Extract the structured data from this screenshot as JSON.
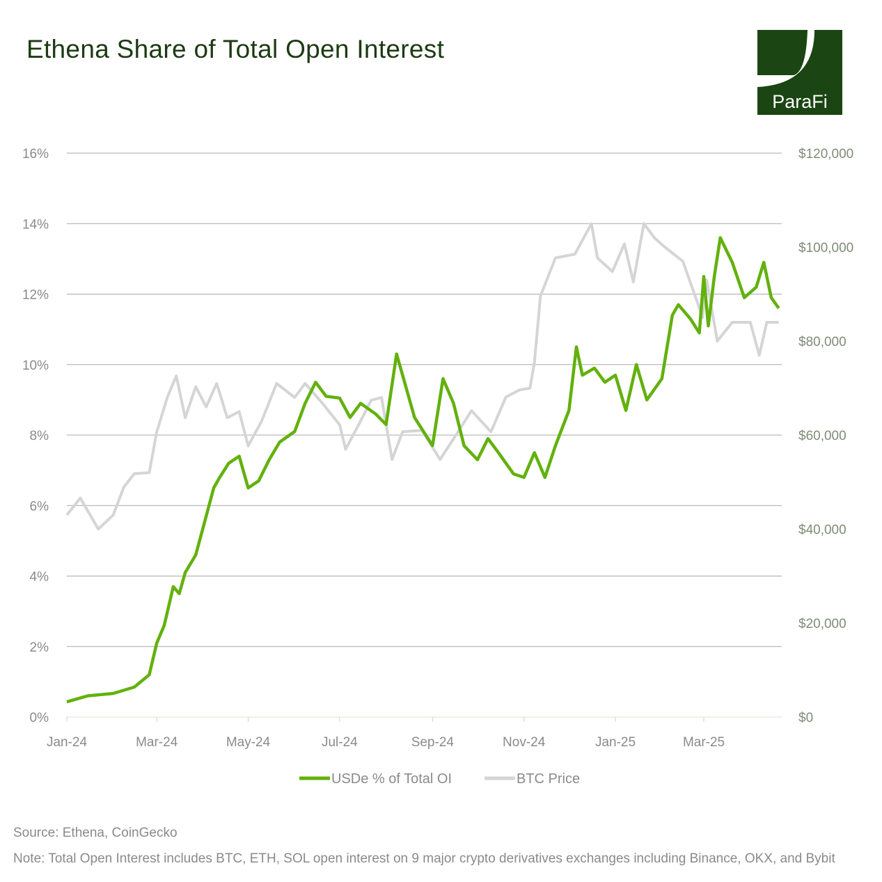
{
  "title": "Ethena Share of Total Open Interest",
  "logo": {
    "text": "ParaFi",
    "color": "#1b4513"
  },
  "source": "Source: Ethena, CoinGecko",
  "note": "Note: Total Open Interest includes BTC, ETH, SOL open interest on 9 major crypto derivatives exchanges including Binance, OKX, and Bybit",
  "chart_data": {
    "type": "line",
    "title": "Ethena Share of Total Open Interest",
    "grid": true,
    "legend_placement": "bottom",
    "x_ticks": [
      {
        "date": "2024-01-01",
        "label": "Jan-24"
      },
      {
        "date": "2024-03-01",
        "label": "Mar-24"
      },
      {
        "date": "2024-05-01",
        "label": "May-24"
      },
      {
        "date": "2024-07-01",
        "label": "Jul-24"
      },
      {
        "date": "2024-09-01",
        "label": "Sep-24"
      },
      {
        "date": "2024-11-01",
        "label": "Nov-24"
      },
      {
        "date": "2025-01-01",
        "label": "Jan-25"
      },
      {
        "date": "2025-03-01",
        "label": "Mar-25"
      }
    ],
    "xlim": [
      "2024-01-01",
      "2025-04-22"
    ],
    "y_left": {
      "ylim": [
        0,
        16
      ],
      "ticks": [
        "0%",
        "2%",
        "4%",
        "6%",
        "8%",
        "10%",
        "12%",
        "14%",
        "16%"
      ],
      "tick_values": [
        0,
        2,
        4,
        6,
        8,
        10,
        12,
        14,
        16
      ]
    },
    "y_right": {
      "ylim": [
        0,
        120000
      ],
      "ticks": [
        "$0",
        "$20,000",
        "$40,000",
        "$60,000",
        "$80,000",
        "$100,000",
        "$120,000"
      ],
      "tick_values": [
        0,
        20000,
        40000,
        60000,
        80000,
        100000,
        120000
      ]
    },
    "series": [
      {
        "name": "USDe % of Total OI",
        "axis": "left",
        "color": "#62b10c",
        "points": [
          [
            "2024-01-01",
            0.43
          ],
          [
            "2024-01-15",
            0.6
          ],
          [
            "2024-02-01",
            0.67
          ],
          [
            "2024-02-15",
            0.85
          ],
          [
            "2024-02-25",
            1.2
          ],
          [
            "2024-03-01",
            2.1
          ],
          [
            "2024-03-06",
            2.6
          ],
          [
            "2024-03-12",
            3.7
          ],
          [
            "2024-03-16",
            3.5
          ],
          [
            "2024-03-20",
            4.1
          ],
          [
            "2024-03-27",
            4.6
          ],
          [
            "2024-04-03",
            5.7
          ],
          [
            "2024-04-08",
            6.5
          ],
          [
            "2024-04-12",
            6.8
          ],
          [
            "2024-04-18",
            7.2
          ],
          [
            "2024-04-25",
            7.4
          ],
          [
            "2024-05-01",
            6.5
          ],
          [
            "2024-05-08",
            6.7
          ],
          [
            "2024-05-15",
            7.3
          ],
          [
            "2024-05-22",
            7.8
          ],
          [
            "2024-06-01",
            8.1
          ],
          [
            "2024-06-08",
            8.9
          ],
          [
            "2024-06-15",
            9.5
          ],
          [
            "2024-06-22",
            9.1
          ],
          [
            "2024-07-01",
            9.05
          ],
          [
            "2024-07-08",
            8.5
          ],
          [
            "2024-07-15",
            8.9
          ],
          [
            "2024-07-25",
            8.6
          ],
          [
            "2024-08-01",
            8.3
          ],
          [
            "2024-08-08",
            10.3
          ],
          [
            "2024-08-12",
            9.7
          ],
          [
            "2024-08-20",
            8.5
          ],
          [
            "2024-09-01",
            7.7
          ],
          [
            "2024-09-08",
            9.6
          ],
          [
            "2024-09-15",
            8.9
          ],
          [
            "2024-09-22",
            7.7
          ],
          [
            "2024-10-01",
            7.3
          ],
          [
            "2024-10-08",
            7.9
          ],
          [
            "2024-10-15",
            7.5
          ],
          [
            "2024-10-25",
            6.9
          ],
          [
            "2024-11-01",
            6.8
          ],
          [
            "2024-11-08",
            7.5
          ],
          [
            "2024-11-15",
            6.8
          ],
          [
            "2024-11-22",
            7.7
          ],
          [
            "2024-12-01",
            8.7
          ],
          [
            "2024-12-06",
            10.5
          ],
          [
            "2024-12-10",
            9.7
          ],
          [
            "2024-12-18",
            9.9
          ],
          [
            "2024-12-25",
            9.5
          ],
          [
            "2025-01-01",
            9.7
          ],
          [
            "2025-01-08",
            8.7
          ],
          [
            "2025-01-15",
            10.0
          ],
          [
            "2025-01-22",
            9.0
          ],
          [
            "2025-02-01",
            9.6
          ],
          [
            "2025-02-08",
            11.4
          ],
          [
            "2025-02-12",
            11.7
          ],
          [
            "2025-02-20",
            11.3
          ],
          [
            "2025-02-26",
            10.9
          ],
          [
            "2025-03-01",
            12.5
          ],
          [
            "2025-03-04",
            11.1
          ],
          [
            "2025-03-08",
            12.5
          ],
          [
            "2025-03-12",
            13.6
          ],
          [
            "2025-03-20",
            12.9
          ],
          [
            "2025-03-28",
            11.9
          ],
          [
            "2025-04-05",
            12.2
          ],
          [
            "2025-04-10",
            12.9
          ],
          [
            "2025-04-15",
            11.9
          ],
          [
            "2025-04-20",
            11.6
          ]
        ]
      },
      {
        "name": "BTC Price",
        "axis": "right",
        "color": "#d5d5d7",
        "points": [
          [
            "2024-01-01",
            43000
          ],
          [
            "2024-01-10",
            46600
          ],
          [
            "2024-01-22",
            40000
          ],
          [
            "2024-02-01",
            43000
          ],
          [
            "2024-02-08",
            48900
          ],
          [
            "2024-02-15",
            51800
          ],
          [
            "2024-02-25",
            52000
          ],
          [
            "2024-03-01",
            60700
          ],
          [
            "2024-03-08",
            68000
          ],
          [
            "2024-03-14",
            72600
          ],
          [
            "2024-03-20",
            63700
          ],
          [
            "2024-03-27",
            70300
          ],
          [
            "2024-04-03",
            66000
          ],
          [
            "2024-04-10",
            71000
          ],
          [
            "2024-04-17",
            63700
          ],
          [
            "2024-04-25",
            65000
          ],
          [
            "2024-05-01",
            57700
          ],
          [
            "2024-05-10",
            63000
          ],
          [
            "2024-05-20",
            71000
          ],
          [
            "2024-06-01",
            68000
          ],
          [
            "2024-06-08",
            71000
          ],
          [
            "2024-06-20",
            66600
          ],
          [
            "2024-07-01",
            62200
          ],
          [
            "2024-07-05",
            57000
          ],
          [
            "2024-07-15",
            63000
          ],
          [
            "2024-07-22",
            67400
          ],
          [
            "2024-07-29",
            68000
          ],
          [
            "2024-08-05",
            54800
          ],
          [
            "2024-08-12",
            60700
          ],
          [
            "2024-08-25",
            61000
          ],
          [
            "2024-09-06",
            54800
          ],
          [
            "2024-09-15",
            59200
          ],
          [
            "2024-09-27",
            65200
          ],
          [
            "2024-10-10",
            60700
          ],
          [
            "2024-10-20",
            68100
          ],
          [
            "2024-10-29",
            69600
          ],
          [
            "2024-11-05",
            70000
          ],
          [
            "2024-11-08",
            75500
          ],
          [
            "2024-11-12",
            89600
          ],
          [
            "2024-11-22",
            97700
          ],
          [
            "2024-12-05",
            98500
          ],
          [
            "2024-12-16",
            105000
          ],
          [
            "2024-12-20",
            97700
          ],
          [
            "2024-12-30",
            94800
          ],
          [
            "2025-01-07",
            100700
          ],
          [
            "2025-01-13",
            92600
          ],
          [
            "2025-01-20",
            105000
          ],
          [
            "2025-01-27",
            102000
          ],
          [
            "2025-02-03",
            100000
          ],
          [
            "2025-02-15",
            97000
          ],
          [
            "2025-02-25",
            88000
          ],
          [
            "2025-02-28",
            85000
          ],
          [
            "2025-03-03",
            93000
          ],
          [
            "2025-03-10",
            80000
          ],
          [
            "2025-03-20",
            84000
          ],
          [
            "2025-04-01",
            84000
          ],
          [
            "2025-04-07",
            77000
          ],
          [
            "2025-04-12",
            84000
          ],
          [
            "2025-04-20",
            84000
          ]
        ]
      }
    ]
  }
}
